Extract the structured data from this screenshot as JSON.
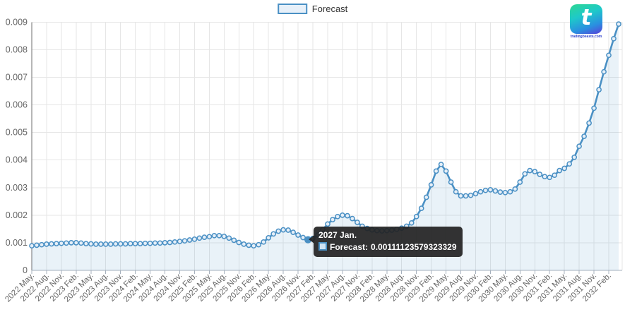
{
  "legend": {
    "label": "Forecast"
  },
  "tooltip": {
    "title": "2027 Jan.",
    "series_label": "Forecast:",
    "value": "0.00111123579323329",
    "point_index": 56
  },
  "watermark": {
    "logo_letter": "t",
    "site_text": "tradingbeasts.com"
  },
  "chart_data": {
    "type": "area",
    "title": "",
    "series_name": "Forecast",
    "interval": "monthly",
    "x_start": "2022 May",
    "x_end": "2032 Apr",
    "legend_position": "top-center",
    "grid": true,
    "ylim": [
      0,
      0.009
    ],
    "y_tick_labels": [
      "0",
      "0.001",
      "0.002",
      "0.003",
      "0.004",
      "0.005",
      "0.006",
      "0.007",
      "0.008",
      "0.009"
    ],
    "x_tick_every_months": 3,
    "x_tick_labels": [
      "2022 May.",
      "2022 Aug.",
      "2022 Nov.",
      "2023 Feb.",
      "2023 May.",
      "2023 Aug.",
      "2023 Nov.",
      "2024 Feb.",
      "2024 May.",
      "2024 Aug.",
      "2024 Nov.",
      "2025 Feb.",
      "2025 May.",
      "2025 Aug.",
      "2025 Nov.",
      "2026 Feb.",
      "2026 May.",
      "2026 Aug.",
      "2026 Nov.",
      "2027 Feb.",
      "2027 May.",
      "2027 Aug.",
      "2027 Nov.",
      "2028 Feb.",
      "2028 May.",
      "2028 Aug.",
      "2028 Nov.",
      "2029 Feb.",
      "2029 May.",
      "2029 Aug.",
      "2029 Nov.",
      "2030 Feb.",
      "2030 May.",
      "2030 Aug.",
      "2030 Nov.",
      "2031 Feb.",
      "2031 May.",
      "2031 Aug.",
      "2031 Nov.",
      "2032 Feb."
    ],
    "values": [
      0.00089,
      0.00091,
      0.00093,
      0.00095,
      0.00096,
      0.00097,
      0.00098,
      0.00099,
      0.001,
      0.001,
      0.00099,
      0.00097,
      0.00096,
      0.00095,
      0.00095,
      0.00095,
      0.00095,
      0.00096,
      0.00096,
      0.00096,
      0.00097,
      0.00097,
      0.00097,
      0.00098,
      0.00098,
      0.00099,
      0.00099,
      0.001,
      0.00101,
      0.00103,
      0.00105,
      0.00107,
      0.0011,
      0.00113,
      0.00117,
      0.0012,
      0.00122,
      0.00126,
      0.00126,
      0.00123,
      0.00117,
      0.00109,
      0.00101,
      0.00095,
      0.00091,
      0.00089,
      0.00093,
      0.00103,
      0.00118,
      0.00132,
      0.00142,
      0.00147,
      0.00146,
      0.00138,
      0.00128,
      0.00119,
      0.00111123579323329,
      0.00116,
      0.00128,
      0.00148,
      0.00168,
      0.00184,
      0.00195,
      0.002,
      0.00198,
      0.00188,
      0.00174,
      0.0016,
      0.00152,
      0.00147,
      0.00144,
      0.00143,
      0.00144,
      0.00146,
      0.00149,
      0.00153,
      0.0016,
      0.00172,
      0.00195,
      0.00225,
      0.00265,
      0.0031,
      0.0036,
      0.00384,
      0.0036,
      0.0032,
      0.00285,
      0.0027,
      0.0027,
      0.00272,
      0.00278,
      0.00285,
      0.0029,
      0.00292,
      0.00288,
      0.00284,
      0.00282,
      0.00285,
      0.00295,
      0.0032,
      0.0035,
      0.00362,
      0.00358,
      0.00348,
      0.0034,
      0.00337,
      0.00345,
      0.00362,
      0.0037,
      0.00386,
      0.0041,
      0.0045,
      0.00486,
      0.00534,
      0.00588,
      0.00655,
      0.0072,
      0.0078,
      0.0084,
      0.00893
    ],
    "colors": {
      "line": "#4a90c4",
      "area_fill": "rgba(74,144,196,0.12)",
      "marker_fill": "#e6eff8",
      "grid": "#e6e6e6",
      "axis_x": "#a7b1bd",
      "axis_y": "#6e6e6e",
      "label": "#666666"
    }
  }
}
